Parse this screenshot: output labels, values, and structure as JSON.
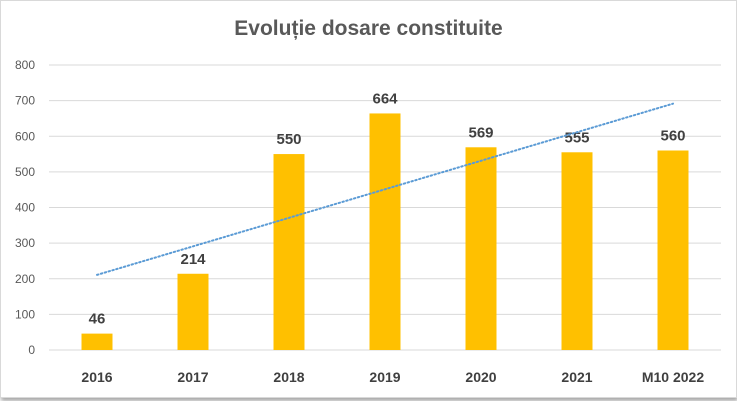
{
  "chart_data": {
    "type": "bar",
    "title": "Evoluție dosare constituite",
    "categories": [
      "2016",
      "2017",
      "2018",
      "2019",
      "2020",
      "2021",
      "M10 2022"
    ],
    "values": [
      46,
      214,
      550,
      664,
      569,
      555,
      560
    ],
    "value_labels": [
      "46",
      "214",
      "550",
      "664",
      "569",
      "555",
      "560"
    ],
    "ylim": [
      0,
      800
    ],
    "yticks": [
      0,
      100,
      200,
      300,
      400,
      500,
      600,
      700,
      800
    ],
    "ytick_labels": [
      "0",
      "100",
      "200",
      "300",
      "400",
      "500",
      "600",
      "700",
      "800"
    ],
    "grid": true,
    "legend": "none",
    "trendline": {
      "type": "linear",
      "style": "dotted"
    },
    "colors": {
      "bar": "#FFC000",
      "trend": "#5B9BD5",
      "grid": "#D9D9D9",
      "text": "#595959"
    }
  }
}
